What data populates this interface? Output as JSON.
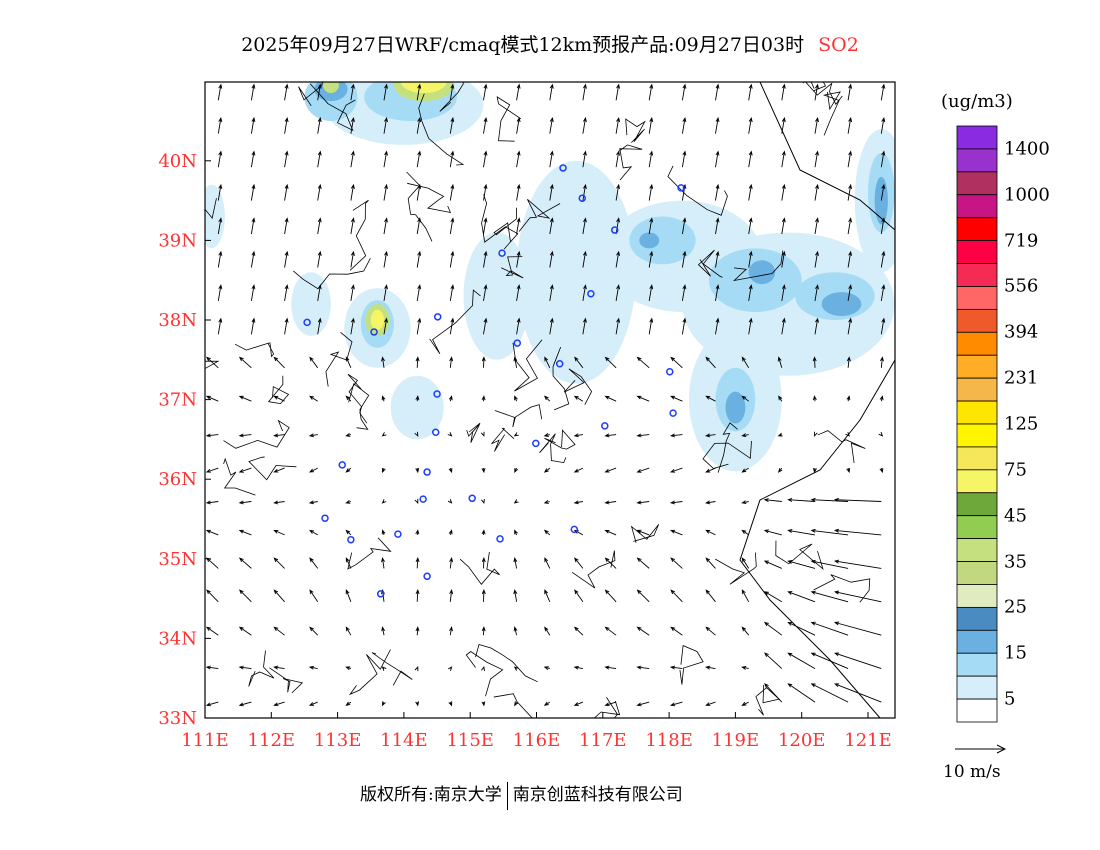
{
  "title": {
    "text": "2025年09月27日WRF/cmaq模式12km预报产品:09月27日03时",
    "species": "SO2",
    "species_color": "#ff3333"
  },
  "map": {
    "lon_range": [
      111,
      121.4
    ],
    "lat_range": [
      33,
      41
    ],
    "lon_ticks": [
      "111E",
      "112E",
      "113E",
      "114E",
      "115E",
      "116E",
      "117E",
      "118E",
      "119E",
      "120E",
      "121E"
    ],
    "lat_ticks": [
      "33N",
      "34N",
      "35N",
      "36N",
      "37N",
      "38N",
      "39N",
      "40N"
    ],
    "tick_color": "#ff3333",
    "stations": [
      [
        116.4,
        39.91
      ],
      [
        116.69,
        39.53
      ],
      [
        118.18,
        39.66
      ],
      [
        117.18,
        39.13
      ],
      [
        115.48,
        38.84
      ],
      [
        116.82,
        38.33
      ],
      [
        112.54,
        37.97
      ],
      [
        113.55,
        37.85
      ],
      [
        114.51,
        38.04
      ],
      [
        115.71,
        37.71
      ],
      [
        116.35,
        37.45
      ],
      [
        118.01,
        37.35
      ],
      [
        114.5,
        37.07
      ],
      [
        117.03,
        36.67
      ],
      [
        118.06,
        36.83
      ],
      [
        114.48,
        36.59
      ],
      [
        115.99,
        36.45
      ],
      [
        113.07,
        36.18
      ],
      [
        114.35,
        36.09
      ],
      [
        114.29,
        35.75
      ],
      [
        115.03,
        35.76
      ],
      [
        112.81,
        35.51
      ],
      [
        116.57,
        35.37
      ],
      [
        113.91,
        35.31
      ],
      [
        113.2,
        35.24
      ],
      [
        115.45,
        35.25
      ],
      [
        114.35,
        34.78
      ],
      [
        113.65,
        34.56
      ]
    ]
  },
  "colorbar": {
    "unit": "(ug/m3)",
    "colors": [
      "#8a2be2",
      "#9932cc",
      "#b03060",
      "#c71585",
      "#ff0000",
      "#ff0044",
      "#f52a55",
      "#ff6666",
      "#f05a2a",
      "#ff8c00",
      "#ffad26",
      "#f5b64a",
      "#ffe600",
      "#fff500",
      "#f5e65a",
      "#f5f566",
      "#6fa83a",
      "#90cd50",
      "#c5e07f",
      "#c2d880",
      "#e0ebc0",
      "#4a8cc2",
      "#6ab0e0",
      "#a6dbf5",
      "#d6eefa",
      "#ffffff"
    ],
    "labels": [
      "1400",
      "1000",
      "719",
      "556",
      "394",
      "231",
      "125",
      "75",
      "45",
      "35",
      "25",
      "15",
      "5"
    ]
  },
  "wind_legend": {
    "label": "10 m/s"
  },
  "footer": {
    "left": "版权所有:南京大学",
    "right": "南京创蓝科技有限公司"
  }
}
